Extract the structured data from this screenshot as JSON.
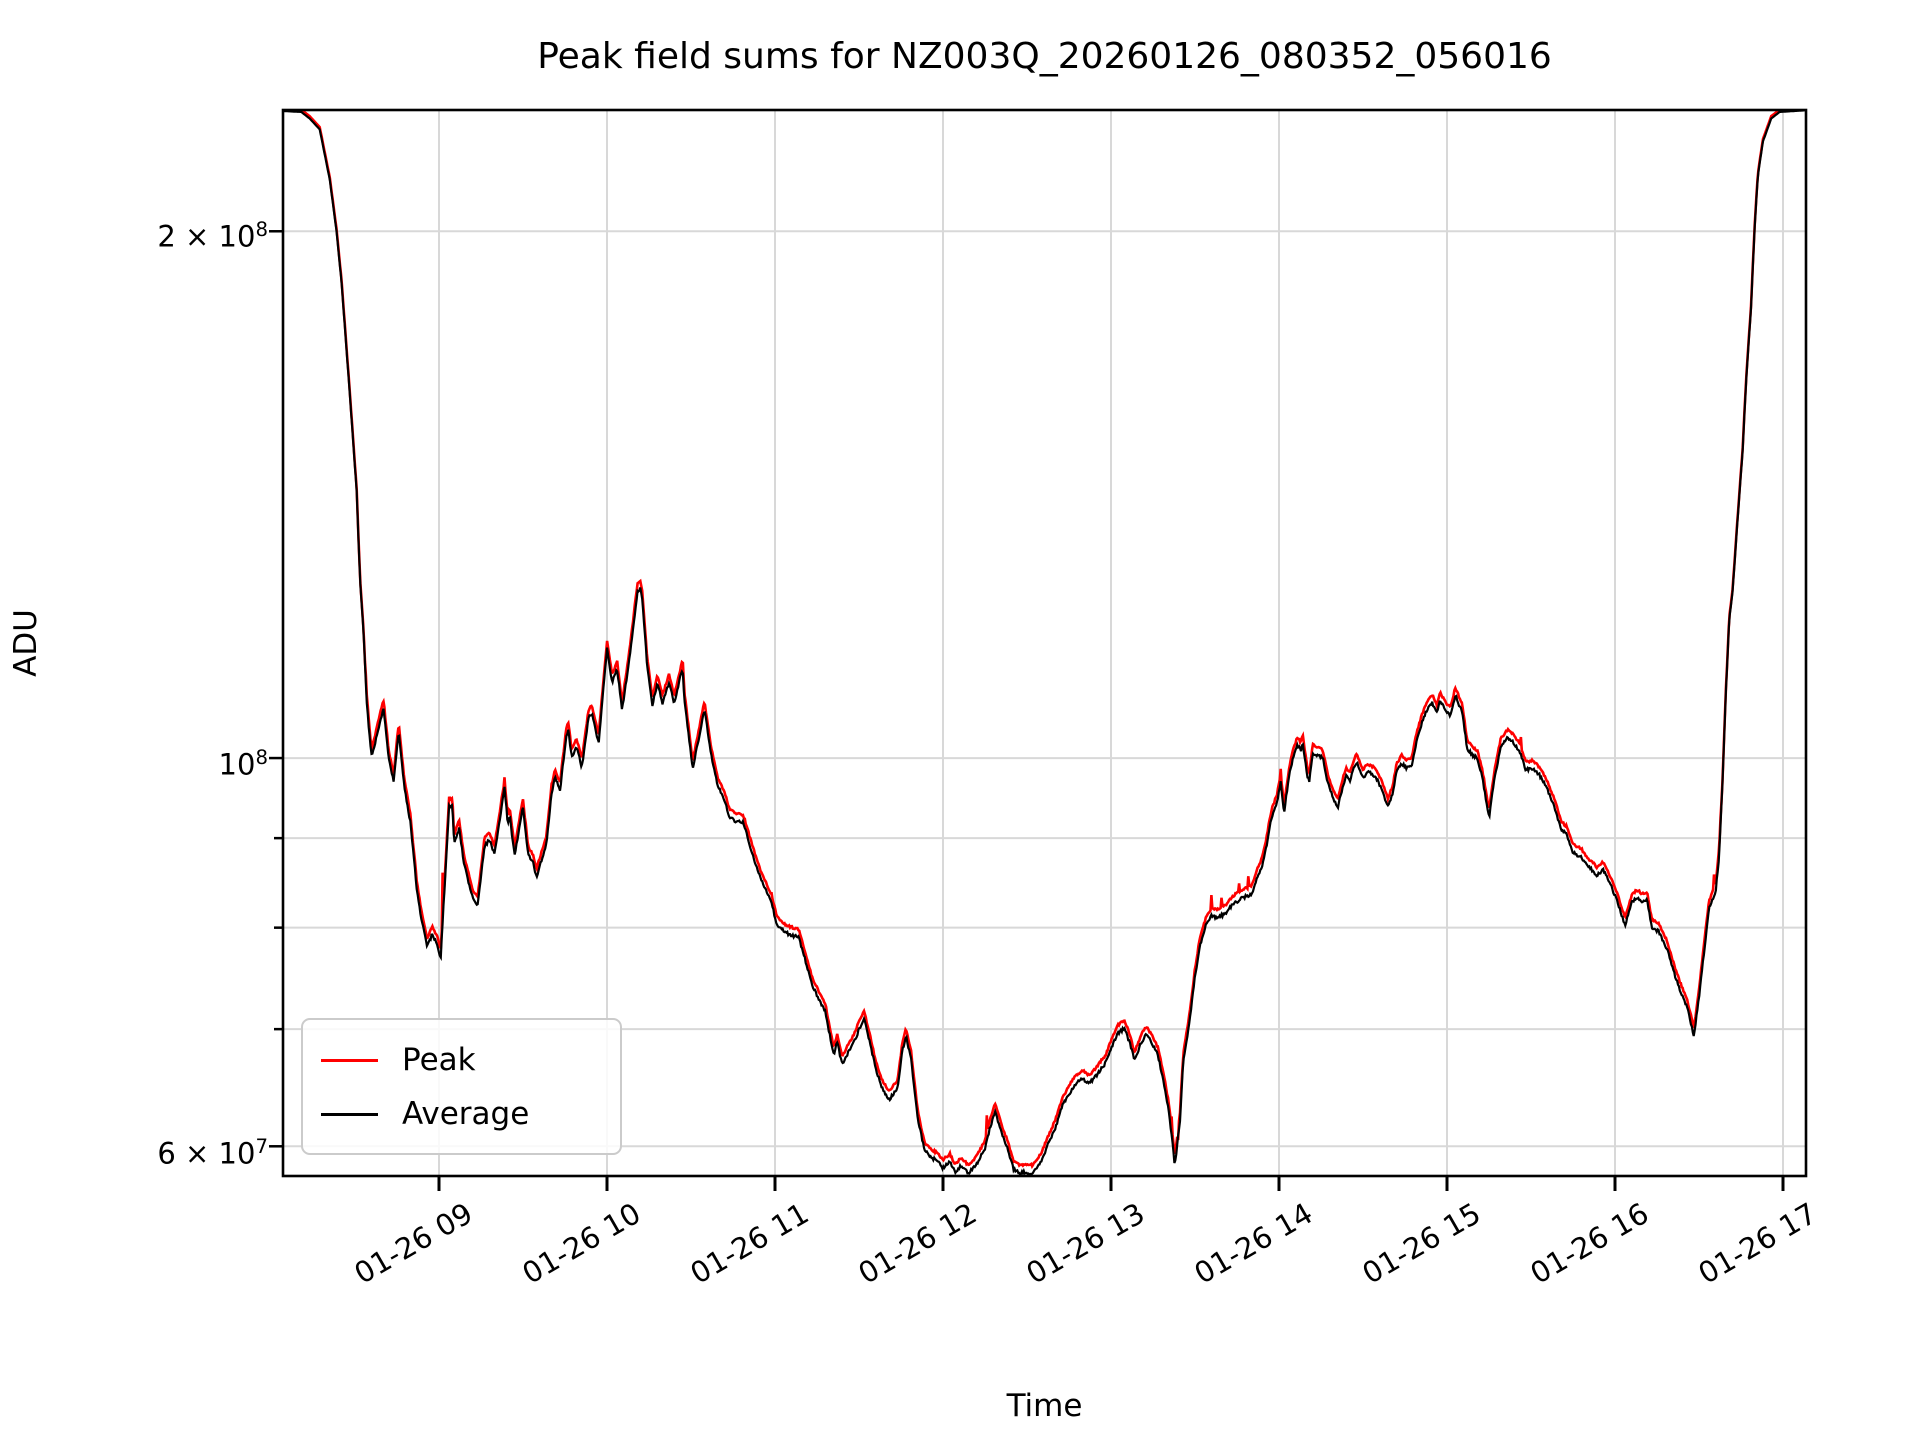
{
  "title": "Peak field sums for NZ003Q_20260126_080352_056016",
  "chart_data": {
    "type": "line",
    "title": "Peak field sums for NZ003Q_20260126_080352_056016",
    "xlabel": "Time",
    "ylabel": "ADU",
    "x_axis": {
      "unit": "hour of day on 01-26",
      "range_hours": [
        8.07,
        17.13
      ],
      "ticks": [
        {
          "hour": 9,
          "label": "01-26 09"
        },
        {
          "hour": 10,
          "label": "01-26 10"
        },
        {
          "hour": 11,
          "label": "01-26 11"
        },
        {
          "hour": 12,
          "label": "01-26 12"
        },
        {
          "hour": 13,
          "label": "01-26 13"
        },
        {
          "hour": 14,
          "label": "01-26 14"
        },
        {
          "hour": 15,
          "label": "01-26 15"
        },
        {
          "hour": 16,
          "label": "01-26 16"
        },
        {
          "hour": 17,
          "label": "01-26 17"
        }
      ]
    },
    "y_axis": {
      "scale": "log",
      "ylim": [
        57700000,
        234600000
      ],
      "gridline_values": [
        60000000,
        70000000,
        80000000,
        90000000,
        100000000,
        200000000
      ],
      "labeled_ticks": [
        {
          "value": 200000000,
          "mantissa": "2 × 10",
          "exp": "8"
        },
        {
          "value": 100000000,
          "mantissa": "10",
          "exp": "8"
        },
        {
          "value": 60000000,
          "mantissa": "6 × 10",
          "exp": "7"
        }
      ]
    },
    "grid": true,
    "legend": {
      "position": "lower left",
      "entries": [
        {
          "name": "Peak",
          "color": "#ff0000"
        },
        {
          "name": "Average",
          "color": "#000000"
        }
      ]
    },
    "series_notes": "Peak overlaps Average almost everywhere, sitting ~1% above it with occasional thin red spikes.",
    "value_unit": 1000000,
    "average_points": [
      [
        8.07,
        234.3
      ],
      [
        8.18,
        234.0
      ],
      [
        8.23,
        232.0
      ],
      [
        8.29,
        228.7
      ],
      [
        8.35,
        214.0
      ],
      [
        8.39,
        200.0
      ],
      [
        8.42,
        187.0
      ],
      [
        8.47,
        161.0
      ],
      [
        8.51,
        142.0
      ],
      [
        8.53,
        126.3
      ],
      [
        8.55,
        118.5
      ],
      [
        8.57,
        107.5
      ],
      [
        8.59,
        102.0
      ],
      [
        8.6,
        100.1
      ],
      [
        8.64,
        104.0
      ],
      [
        8.67,
        106.8
      ],
      [
        8.7,
        100.1
      ],
      [
        8.73,
        96.9
      ],
      [
        8.76,
        103.5
      ],
      [
        8.79,
        97.0
      ],
      [
        8.8,
        95.5
      ],
      [
        8.83,
        91.8
      ],
      [
        8.87,
        83.8
      ],
      [
        8.9,
        80.5
      ],
      [
        8.93,
        78.0
      ],
      [
        8.96,
        79.3
      ],
      [
        8.99,
        78.2
      ],
      [
        9.01,
        76.9
      ],
      [
        9.06,
        93.8
      ],
      [
        9.08,
        93.9
      ],
      [
        9.09,
        89.4
      ],
      [
        9.12,
        91.2
      ],
      [
        9.15,
        86.9
      ],
      [
        9.2,
        83.2
      ],
      [
        9.23,
        82.4
      ],
      [
        9.27,
        89.0
      ],
      [
        9.3,
        89.8
      ],
      [
        9.33,
        88.1
      ],
      [
        9.39,
        96.1
      ],
      [
        9.41,
        91.6
      ],
      [
        9.42,
        92.8
      ],
      [
        9.45,
        88.0
      ],
      [
        9.5,
        93.8
      ],
      [
        9.53,
        88.1
      ],
      [
        9.56,
        87.1
      ],
      [
        9.58,
        85.5
      ],
      [
        9.61,
        87.4
      ],
      [
        9.64,
        89.4
      ],
      [
        9.67,
        95.5
      ],
      [
        9.69,
        97.5
      ],
      [
        9.72,
        95.8
      ],
      [
        9.76,
        103.3
      ],
      [
        9.77,
        103.7
      ],
      [
        9.79,
        100.1
      ],
      [
        9.82,
        101.5
      ],
      [
        9.85,
        98.8
      ],
      [
        9.89,
        105.4
      ],
      [
        9.91,
        106.1
      ],
      [
        9.95,
        102.0
      ],
      [
        10.0,
        115.5
      ],
      [
        10.03,
        110.4
      ],
      [
        10.06,
        112.5
      ],
      [
        10.09,
        106.5
      ],
      [
        10.14,
        115.2
      ],
      [
        10.18,
        124.3
      ],
      [
        10.2,
        125.0
      ],
      [
        10.21,
        123.1
      ],
      [
        10.24,
        112.7
      ],
      [
        10.27,
        107.2
      ],
      [
        10.3,
        110.4
      ],
      [
        10.33,
        107.5
      ],
      [
        10.37,
        110.5
      ],
      [
        10.4,
        107.5
      ],
      [
        10.45,
        112.7
      ],
      [
        10.46,
        108.1
      ],
      [
        10.51,
        98.6
      ],
      [
        10.55,
        103.1
      ],
      [
        10.58,
        106.6
      ],
      [
        10.62,
        100.4
      ],
      [
        10.66,
        96.4
      ],
      [
        10.7,
        94.6
      ],
      [
        10.73,
        92.4
      ],
      [
        10.77,
        92.0
      ],
      [
        10.81,
        91.9
      ],
      [
        10.85,
        89.2
      ],
      [
        10.89,
        86.6
      ],
      [
        10.93,
        84.6
      ],
      [
        10.98,
        82.7
      ],
      [
        11.01,
        80.3
      ],
      [
        11.06,
        79.5
      ],
      [
        11.1,
        79.2
      ],
      [
        11.14,
        79.0
      ],
      [
        11.18,
        76.7
      ],
      [
        11.22,
        74.2
      ],
      [
        11.26,
        72.8
      ],
      [
        11.3,
        71.6
      ],
      [
        11.33,
        69.1
      ],
      [
        11.35,
        67.7
      ],
      [
        11.37,
        68.8
      ],
      [
        11.4,
        66.8
      ],
      [
        11.43,
        67.7
      ],
      [
        11.48,
        69.1
      ],
      [
        11.5,
        70.0
      ],
      [
        11.53,
        70.9
      ],
      [
        11.56,
        69.1
      ],
      [
        11.6,
        66.4
      ],
      [
        11.64,
        64.7
      ],
      [
        11.68,
        63.8
      ],
      [
        11.73,
        64.8
      ],
      [
        11.76,
        68.2
      ],
      [
        11.78,
        69.3
      ],
      [
        11.81,
        67.3
      ],
      [
        11.85,
        62.2
      ],
      [
        11.89,
        59.7
      ],
      [
        11.92,
        59.2
      ],
      [
        11.96,
        58.9
      ],
      [
        12.0,
        58.3
      ],
      [
        12.04,
        58.8
      ],
      [
        12.07,
        58.0
      ],
      [
        12.11,
        58.5
      ],
      [
        12.15,
        57.9
      ],
      [
        12.19,
        58.4
      ],
      [
        12.22,
        59.1
      ],
      [
        12.25,
        59.8
      ],
      [
        12.28,
        61.5
      ],
      [
        12.31,
        62.8
      ],
      [
        12.35,
        61.0
      ],
      [
        12.39,
        59.6
      ],
      [
        12.42,
        58.2
      ],
      [
        12.46,
        57.9
      ],
      [
        12.49,
        58.0
      ],
      [
        12.53,
        57.9
      ],
      [
        12.56,
        58.3
      ],
      [
        12.59,
        59.0
      ],
      [
        12.62,
        60.0
      ],
      [
        12.67,
        61.5
      ],
      [
        12.71,
        63.3
      ],
      [
        12.74,
        64.0
      ],
      [
        12.78,
        65.0
      ],
      [
        12.83,
        65.6
      ],
      [
        12.87,
        65.2
      ],
      [
        12.91,
        65.8
      ],
      [
        12.94,
        66.4
      ],
      [
        12.97,
        67.0
      ],
      [
        13.0,
        68.2
      ],
      [
        13.04,
        69.6
      ],
      [
        13.08,
        70.1
      ],
      [
        13.11,
        68.8
      ],
      [
        13.14,
        67.2
      ],
      [
        13.18,
        68.8
      ],
      [
        13.21,
        69.5
      ],
      [
        13.24,
        68.8
      ],
      [
        13.28,
        67.6
      ],
      [
        13.31,
        65.5
      ],
      [
        13.34,
        63.2
      ],
      [
        13.36,
        61.0
      ],
      [
        13.38,
        58.5
      ],
      [
        13.41,
        62.0
      ],
      [
        13.43,
        67.0
      ],
      [
        13.47,
        71.0
      ],
      [
        13.5,
        75.0
      ],
      [
        13.53,
        78.2
      ],
      [
        13.57,
        80.5
      ],
      [
        13.6,
        81.3
      ],
      [
        13.63,
        81.0
      ],
      [
        13.68,
        81.5
      ],
      [
        13.71,
        82.2
      ],
      [
        13.74,
        82.7
      ],
      [
        13.78,
        83.2
      ],
      [
        13.81,
        83.4
      ],
      [
        13.84,
        83.7
      ],
      [
        13.87,
        85.5
      ],
      [
        13.9,
        86.8
      ],
      [
        13.93,
        89.5
      ],
      [
        13.94,
        91.0
      ],
      [
        13.96,
        92.7
      ],
      [
        13.99,
        94.5
      ],
      [
        14.01,
        97.0
      ],
      [
        14.03,
        93.0
      ],
      [
        14.06,
        97.7
      ],
      [
        14.08,
        99.7
      ],
      [
        14.11,
        101.8
      ],
      [
        14.13,
        101.0
      ],
      [
        14.14,
        102.2
      ],
      [
        14.17,
        97.5
      ],
      [
        14.18,
        97.0
      ],
      [
        14.2,
        100.7
      ],
      [
        14.23,
        100.4
      ],
      [
        14.26,
        100.1
      ],
      [
        14.29,
        96.8
      ],
      [
        14.32,
        95.0
      ],
      [
        14.35,
        93.7
      ],
      [
        14.38,
        96.3
      ],
      [
        14.4,
        97.8
      ],
      [
        14.42,
        97.0
      ],
      [
        14.44,
        98.4
      ],
      [
        14.46,
        99.5
      ],
      [
        14.5,
        97.5
      ],
      [
        14.53,
        98.2
      ],
      [
        14.56,
        97.8
      ],
      [
        14.59,
        97.0
      ],
      [
        14.62,
        95.5
      ],
      [
        14.65,
        93.7
      ],
      [
        14.68,
        95.8
      ],
      [
        14.7,
        98.2
      ],
      [
        14.73,
        99.3
      ],
      [
        14.76,
        98.7
      ],
      [
        14.79,
        99.0
      ],
      [
        14.82,
        102.4
      ],
      [
        14.85,
        104.7
      ],
      [
        14.88,
        106.5
      ],
      [
        14.91,
        107.6
      ],
      [
        14.94,
        106.2
      ],
      [
        14.96,
        107.9
      ],
      [
        14.99,
        106.5
      ],
      [
        15.02,
        105.8
      ],
      [
        15.05,
        108.6
      ],
      [
        15.09,
        106.2
      ],
      [
        15.12,
        101.3
      ],
      [
        15.15,
        100.4
      ],
      [
        15.18,
        100.0
      ],
      [
        15.21,
        97.5
      ],
      [
        15.25,
        92.4
      ],
      [
        15.28,
        97.0
      ],
      [
        15.32,
        101.5
      ],
      [
        15.36,
        102.7
      ],
      [
        15.39,
        102.2
      ],
      [
        15.43,
        101.0
      ],
      [
        15.47,
        98.4
      ],
      [
        15.51,
        98.7
      ],
      [
        15.55,
        97.8
      ],
      [
        15.59,
        96.3
      ],
      [
        15.64,
        93.7
      ],
      [
        15.68,
        91.0
      ],
      [
        15.71,
        90.5
      ],
      [
        15.75,
        88.3
      ],
      [
        15.8,
        87.8
      ],
      [
        15.84,
        86.7
      ],
      [
        15.87,
        86.2
      ],
      [
        15.89,
        85.7
      ],
      [
        15.93,
        86.3
      ],
      [
        15.97,
        84.8
      ],
      [
        16.01,
        83.0
      ],
      [
        16.06,
        80.2
      ],
      [
        16.1,
        82.7
      ],
      [
        16.13,
        83.2
      ],
      [
        16.16,
        82.8
      ],
      [
        16.19,
        83.0
      ],
      [
        16.22,
        80.0
      ],
      [
        16.26,
        79.6
      ],
      [
        16.31,
        77.8
      ],
      [
        16.34,
        76.0
      ],
      [
        16.38,
        74.0
      ],
      [
        16.43,
        72.0
      ],
      [
        16.46,
        70.0
      ],
      [
        16.47,
        69.4
      ],
      [
        16.5,
        73.0
      ],
      [
        16.52,
        76.0
      ],
      [
        16.54,
        79.0
      ],
      [
        16.56,
        82.0
      ],
      [
        16.59,
        83.5
      ],
      [
        16.6,
        84.0
      ],
      [
        16.62,
        88.0
      ],
      [
        16.64,
        97.0
      ],
      [
        16.66,
        109.0
      ],
      [
        16.68,
        120.0
      ],
      [
        16.7,
        124.5
      ],
      [
        16.73,
        137.0
      ],
      [
        16.76,
        150.0
      ],
      [
        16.78,
        164.0
      ],
      [
        16.81,
        181.0
      ],
      [
        16.83,
        200.0
      ],
      [
        16.85,
        215.0
      ],
      [
        16.88,
        225.0
      ],
      [
        16.93,
        232.0
      ],
      [
        16.98,
        234.0
      ],
      [
        17.13,
        234.5
      ]
    ],
    "peak_over_average_ratio": 1.009,
    "peak_spikes": [
      [
        9.02,
        86.0
      ],
      [
        9.39,
        97.5
      ],
      [
        12.26,
        62.5
      ],
      [
        13.36,
        62.4
      ],
      [
        13.4,
        60.5
      ],
      [
        13.6,
        83.5
      ],
      [
        13.66,
        83.2
      ],
      [
        13.76,
        84.8
      ],
      [
        13.82,
        85.6
      ],
      [
        14.01,
        98.6
      ],
      [
        15.44,
        102.8
      ],
      [
        16.59,
        85.8
      ]
    ]
  },
  "style": {
    "grid_color": "#d8d8d8",
    "frame_color": "#000000",
    "peak_color": "#ff0000",
    "average_color": "#000000",
    "background": "#ffffff"
  }
}
